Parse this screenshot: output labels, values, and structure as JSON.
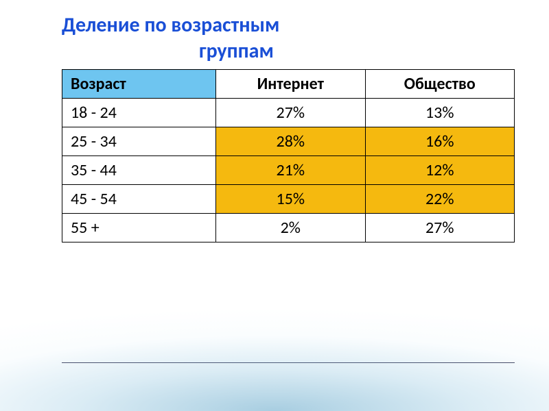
{
  "title_line1": "Деление по возрастным",
  "title_line2": "группам",
  "table": {
    "type": "table",
    "background_color": "#ffffff",
    "border_color": "#000000",
    "header_bg_first": "#6ec5f0",
    "header_bg_rest": "#ffffff",
    "highlight_bg": "#f5b90f",
    "font_size_pt": 18,
    "columns": [
      {
        "label": "Возраст",
        "align": "left",
        "width_pct": 34
      },
      {
        "label": "Интернет",
        "align": "center",
        "width_pct": 33
      },
      {
        "label": "Общество",
        "align": "center",
        "width_pct": 33
      }
    ],
    "rows": [
      {
        "age": "18 - 24",
        "internet": "27%",
        "society": "13%",
        "highlight": []
      },
      {
        "age": "25 - 34",
        "internet": "28%",
        "society": "16%",
        "highlight": [
          "internet",
          "society"
        ]
      },
      {
        "age": "35 - 44",
        "internet": "21%",
        "society": "12%",
        "highlight": [
          "internet",
          "society"
        ]
      },
      {
        "age": "45 - 54",
        "internet": "15%",
        "society": "22%",
        "highlight": [
          "internet",
          "society"
        ]
      },
      {
        "age": "55 +",
        "internet": "2%",
        "society": "27%",
        "highlight": []
      }
    ]
  },
  "colors": {
    "title_color": "#1a4fd6",
    "gradient_base": "#6aaed0",
    "hr_color": "#2a2a4a"
  }
}
